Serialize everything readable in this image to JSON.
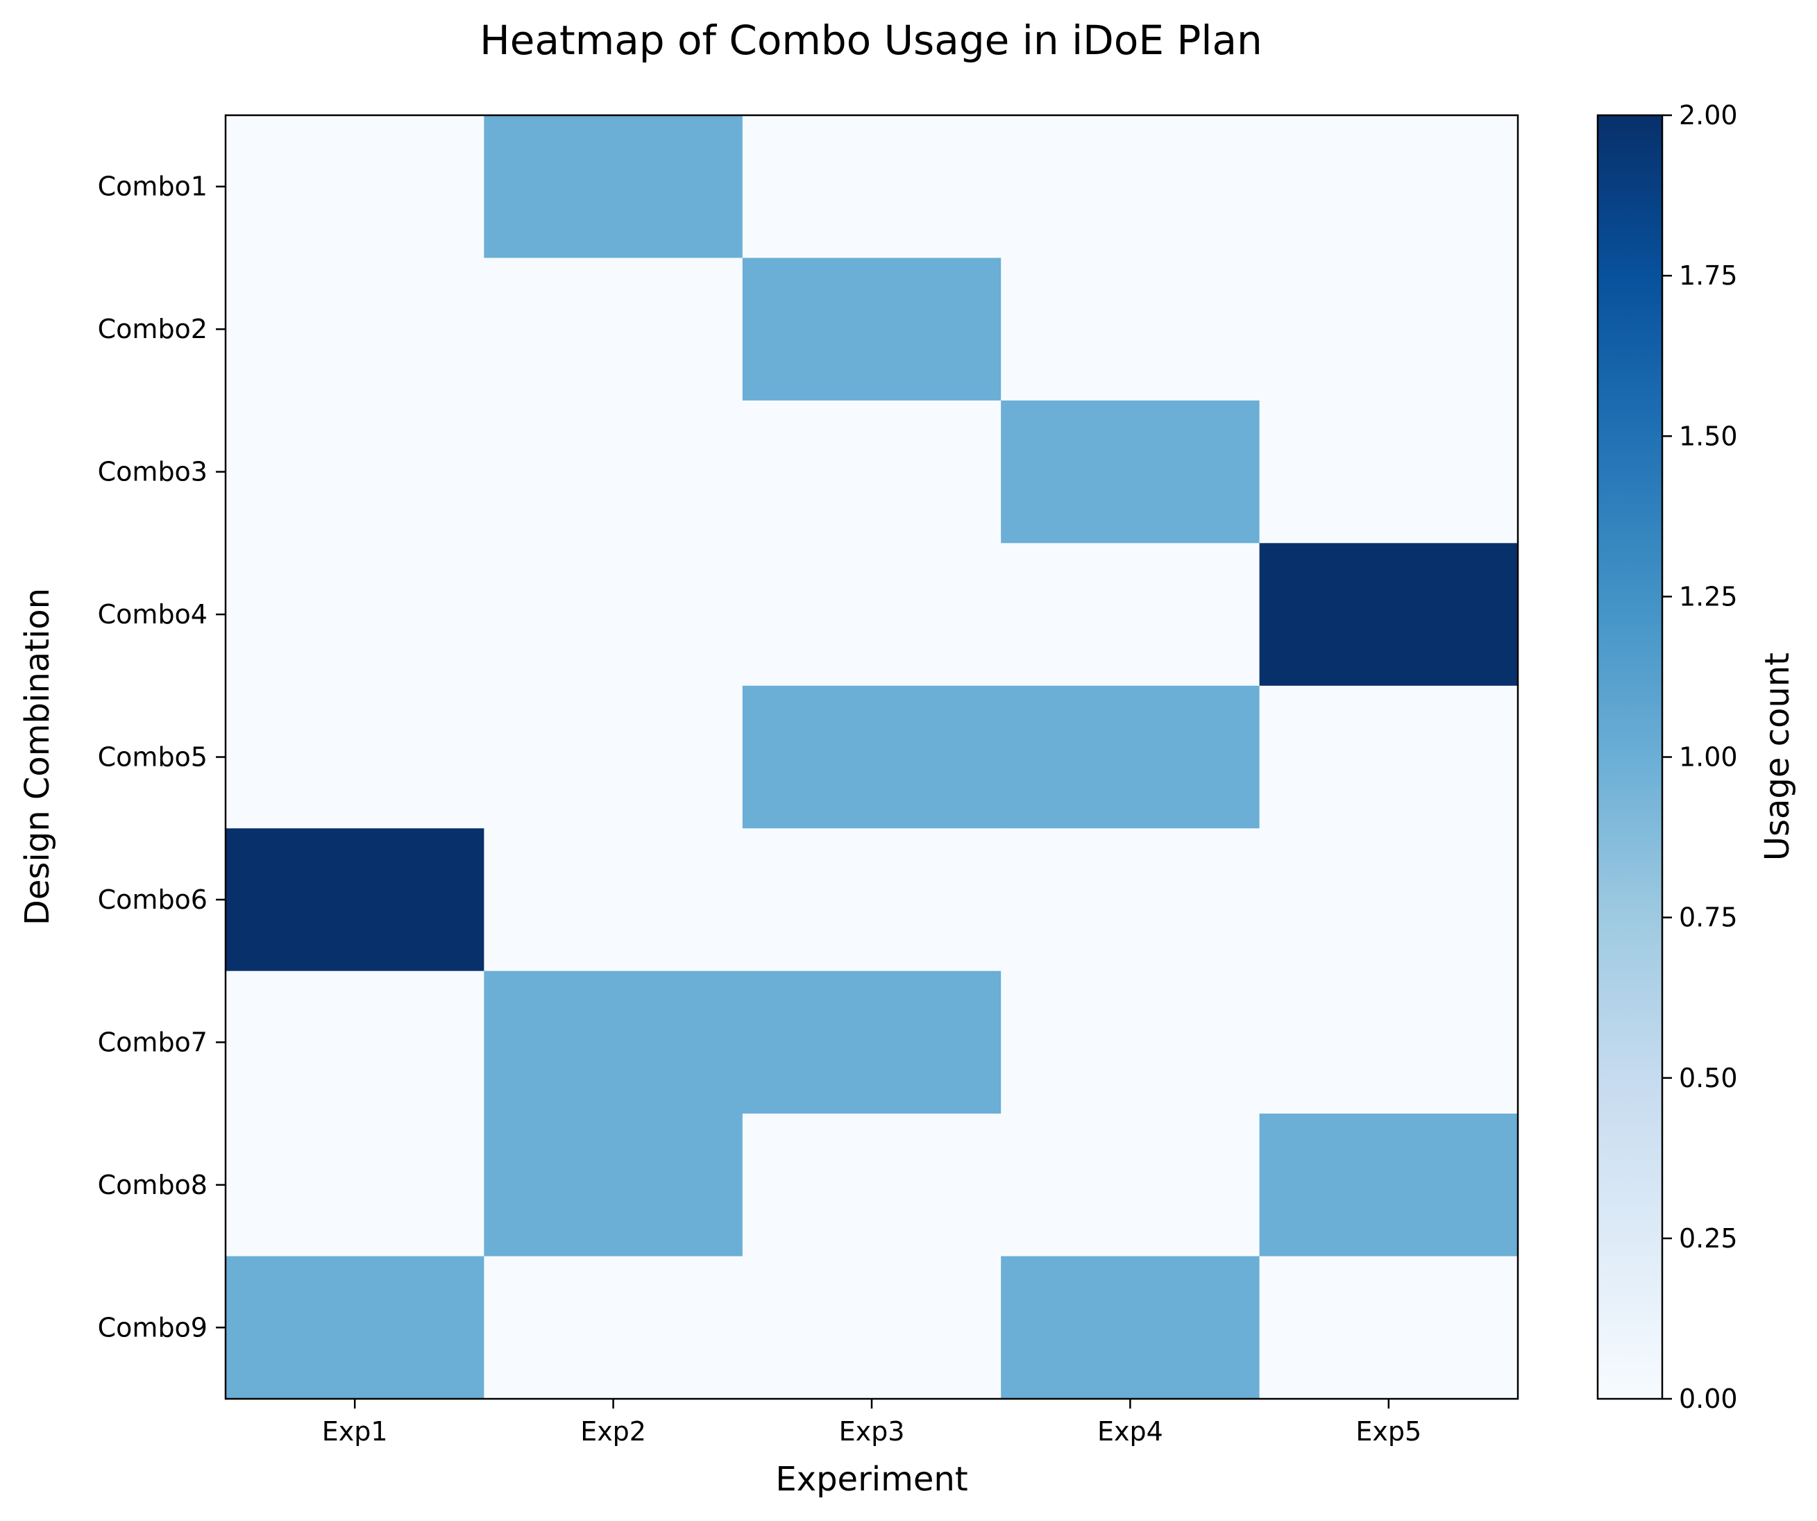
{
  "chart_data": {
    "type": "heatmap",
    "title": "Heatmap of Combo Usage in iDoE Plan",
    "xlabel": "Experiment",
    "ylabel": "Design Combination",
    "x": [
      "Exp1",
      "Exp2",
      "Exp3",
      "Exp4",
      "Exp5"
    ],
    "y": [
      "Combo1",
      "Combo2",
      "Combo3",
      "Combo4",
      "Combo5",
      "Combo6",
      "Combo7",
      "Combo8",
      "Combo9"
    ],
    "values": [
      [
        0,
        1,
        0,
        0,
        0
      ],
      [
        0,
        0,
        1,
        0,
        0
      ],
      [
        0,
        0,
        0,
        1,
        0
      ],
      [
        0,
        0,
        0,
        0,
        2
      ],
      [
        0,
        0,
        1,
        1,
        0
      ],
      [
        2,
        0,
        0,
        0,
        0
      ],
      [
        0,
        1,
        1,
        0,
        0
      ],
      [
        0,
        1,
        0,
        0,
        1
      ],
      [
        1,
        0,
        0,
        1,
        0
      ]
    ],
    "colorbar": {
      "label": "Usage count",
      "range": [
        0,
        2
      ],
      "ticks": [
        "0.00",
        "0.25",
        "0.50",
        "0.75",
        "1.00",
        "1.25",
        "1.50",
        "1.75",
        "2.00"
      ],
      "colormap": "Blues",
      "color_stops": [
        "#f7fbff",
        "#deebf7",
        "#c6dbef",
        "#9ecae1",
        "#6baed6",
        "#4292c6",
        "#2171b5",
        "#08519c",
        "#08306b"
      ]
    },
    "grid": false
  }
}
